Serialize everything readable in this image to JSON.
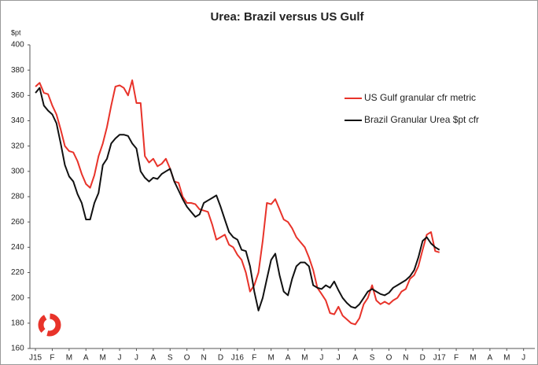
{
  "chart_data": {
    "type": "line",
    "title": "Urea: Brazil versus US Gulf",
    "y_label": "$pt",
    "x": [
      0,
      0.25,
      0.5,
      0.75,
      1,
      1.25,
      1.5,
      1.75,
      2,
      2.25,
      2.5,
      2.75,
      3,
      3.25,
      3.5,
      3.75,
      4,
      4.25,
      4.5,
      4.75,
      5,
      5.25,
      5.5,
      5.75,
      6,
      6.25,
      6.5,
      6.75,
      7,
      7.25,
      7.5,
      7.75,
      8,
      8.25,
      8.5,
      8.75,
      9,
      9.25,
      9.5,
      9.75,
      10,
      10.25,
      10.5,
      10.75,
      11,
      11.25,
      11.5,
      11.75,
      12,
      12.25,
      12.5,
      12.75,
      13,
      13.25,
      13.5,
      13.75,
      14,
      14.25,
      14.5,
      14.75,
      15,
      15.25,
      15.5,
      15.75,
      16,
      16.25,
      16.5,
      16.75,
      17,
      17.25,
      17.5,
      17.75,
      18,
      18.25,
      18.5,
      18.75,
      19,
      19.25,
      19.5,
      19.75,
      20,
      20.25,
      20.5,
      20.75,
      21,
      21.25,
      21.5,
      21.75,
      22,
      22.25,
      22.5,
      22.75,
      23,
      23.25,
      23.5,
      23.75,
      24
    ],
    "series": [
      {
        "name": "US Gulf granular cfr metric",
        "color": "#e8332a",
        "values": [
          367,
          370,
          362,
          361,
          352,
          345,
          333,
          320,
          316,
          315,
          308,
          298,
          290,
          287,
          297,
          312,
          322,
          335,
          352,
          367,
          368,
          366,
          360,
          372,
          354,
          354,
          312,
          307,
          310,
          304,
          306,
          310,
          302,
          292,
          291,
          280,
          275,
          275,
          274,
          270,
          269,
          268,
          258,
          246,
          248,
          250,
          242,
          240,
          234,
          230,
          220,
          205,
          210,
          220,
          245,
          275,
          274,
          278,
          270,
          262,
          260,
          255,
          248,
          244,
          240,
          232,
          222,
          208,
          203,
          198,
          188,
          187,
          193,
          186,
          183,
          180,
          179,
          184,
          195,
          200,
          210,
          198,
          195,
          197,
          195,
          198,
          200,
          205,
          207,
          215,
          218,
          225,
          238,
          250,
          252,
          237,
          236
        ]
      },
      {
        "name": "Brazil Granular Urea $pt cfr",
        "color": "#111111",
        "values": [
          362,
          366,
          352,
          348,
          345,
          338,
          322,
          305,
          296,
          292,
          282,
          275,
          262,
          262,
          275,
          283,
          305,
          310,
          322,
          326,
          329,
          329,
          328,
          322,
          318,
          300,
          295,
          292,
          295,
          294,
          298,
          300,
          302,
          292,
          285,
          278,
          272,
          268,
          264,
          266,
          275,
          277,
          279,
          281,
          272,
          262,
          252,
          248,
          246,
          238,
          237,
          225,
          205,
          190,
          200,
          215,
          230,
          235,
          218,
          205,
          202,
          215,
          225,
          228,
          228,
          225,
          210,
          208,
          207,
          210,
          208,
          213,
          206,
          200,
          196,
          193,
          192,
          195,
          200,
          205,
          207,
          205,
          203,
          202,
          204,
          208,
          210,
          212,
          214,
          217,
          222,
          232,
          245,
          248,
          243,
          240,
          238
        ]
      }
    ],
    "xlim": [
      -0.33,
      29.67
    ],
    "xticks": [
      {
        "value": 0,
        "label": "J15"
      },
      {
        "value": 1,
        "label": "F"
      },
      {
        "value": 2,
        "label": "M"
      },
      {
        "value": 3,
        "label": "A"
      },
      {
        "value": 4,
        "label": "M"
      },
      {
        "value": 5,
        "label": "J"
      },
      {
        "value": 6,
        "label": "J"
      },
      {
        "value": 7,
        "label": "A"
      },
      {
        "value": 8,
        "label": "S"
      },
      {
        "value": 9,
        "label": "O"
      },
      {
        "value": 10,
        "label": "N"
      },
      {
        "value": 11,
        "label": "D"
      },
      {
        "value": 12,
        "label": "J16"
      },
      {
        "value": 13,
        "label": "F"
      },
      {
        "value": 14,
        "label": "M"
      },
      {
        "value": 15,
        "label": "A"
      },
      {
        "value": 16,
        "label": "M"
      },
      {
        "value": 17,
        "label": "J"
      },
      {
        "value": 18,
        "label": "J"
      },
      {
        "value": 19,
        "label": "A"
      },
      {
        "value": 20,
        "label": "S"
      },
      {
        "value": 21,
        "label": "O"
      },
      {
        "value": 22,
        "label": "N"
      },
      {
        "value": 23,
        "label": "D"
      },
      {
        "value": 24,
        "label": "J17"
      },
      {
        "value": 25,
        "label": "F"
      },
      {
        "value": 26,
        "label": "M"
      },
      {
        "value": 27,
        "label": "A"
      },
      {
        "value": 28,
        "label": "M"
      },
      {
        "value": 29,
        "label": "J"
      }
    ],
    "ylim": [
      160,
      400
    ],
    "yticks": [
      160,
      180,
      200,
      220,
      240,
      260,
      280,
      300,
      320,
      340,
      360,
      380,
      400
    ],
    "grid": false,
    "legend": "upper right"
  }
}
